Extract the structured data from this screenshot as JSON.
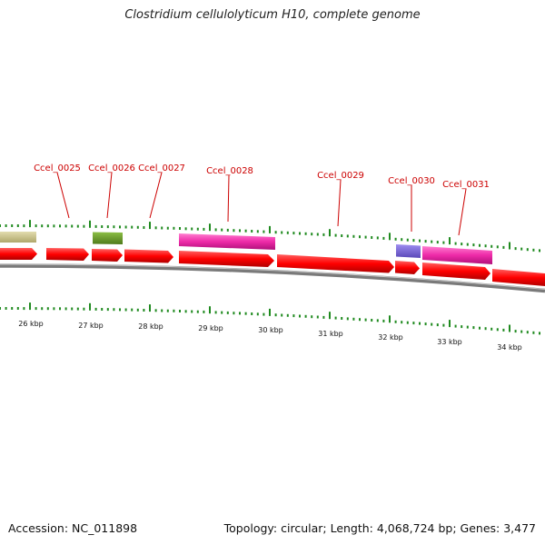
{
  "title": "Clostridium cellulolyticum H10, complete genome",
  "footer": {
    "accession": "Accession: NC_011898",
    "summary": "Topology: circular; Length: 4,068,724 bp; Genes: 3,477"
  },
  "colors": {
    "label": "#cc0000",
    "cds": "#ff0000",
    "tick": "#1f8a1f",
    "backbone": "#7a7a7a"
  },
  "scale_labels": [
    "26 kbp",
    "27 kbp",
    "28 kbp",
    "29 kbp",
    "30 kbp",
    "31 kbp",
    "32 kbp",
    "33 kbp",
    "34 kbp"
  ],
  "gene_labels": [
    "Ccel_0025",
    "Ccel_0026",
    "Ccel_0027",
    "Ccel_0028",
    "Ccel_0029",
    "Ccel_0030",
    "Ccel_0031"
  ],
  "feature_colors": {
    "tan": "#c8c088",
    "olive": "#6f9a2c",
    "magenta": "#ee2aa8",
    "purple": "#7a66d6"
  }
}
